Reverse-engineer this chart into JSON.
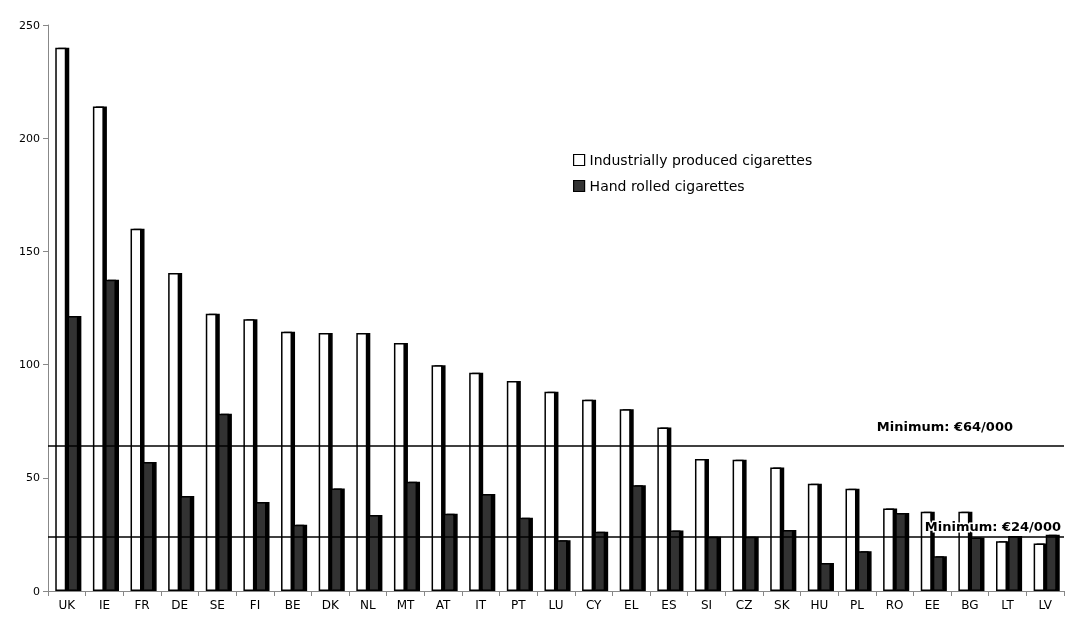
{
  "chart_data": {
    "type": "bar",
    "categories": [
      "UK",
      "IE",
      "FR",
      "DE",
      "SE",
      "FI",
      "BE",
      "DK",
      "NL",
      "MT",
      "AT",
      "IT",
      "PT",
      "LU",
      "CY",
      "EL",
      "ES",
      "SI",
      "CZ",
      "SK",
      "HU",
      "PL",
      "RO",
      "EE",
      "BG",
      "LT",
      "LV"
    ],
    "series": [
      {
        "name": "Industrially produced cigarettes",
        "color": "#ffffff",
        "values": [
          240,
          214,
          160,
          140.5,
          122.5,
          120,
          114.5,
          114,
          114,
          109.5,
          99.7,
          96.4,
          92.8,
          88,
          84.5,
          80.3,
          72.2,
          58.3,
          58,
          54.5,
          47.4,
          45.2,
          36.4,
          35,
          35,
          22,
          21
        ]
      },
      {
        "name": "Hand rolled cigarettes",
        "color": "#333333",
        "values": [
          121.5,
          137.5,
          57,
          42,
          78.3,
          39.3,
          29.3,
          45.3,
          33.6,
          48.3,
          34.1,
          42.8,
          32.4,
          22.4,
          26.2,
          46.7,
          26.7,
          24,
          24,
          26.9,
          12.4,
          17.6,
          34.5,
          15.3,
          23.6,
          24.3,
          24.8
        ]
      }
    ],
    "ylim": [
      0,
      250
    ],
    "yticks": [
      0,
      50,
      100,
      150,
      200,
      250
    ],
    "grid": false,
    "legend": "top right",
    "ref_lines": [
      {
        "axis": "y",
        "value": 64,
        "label": "Minimum: €64/000"
      },
      {
        "axis": "y",
        "value": 24,
        "label": "Minimum: €24/000"
      }
    ]
  }
}
